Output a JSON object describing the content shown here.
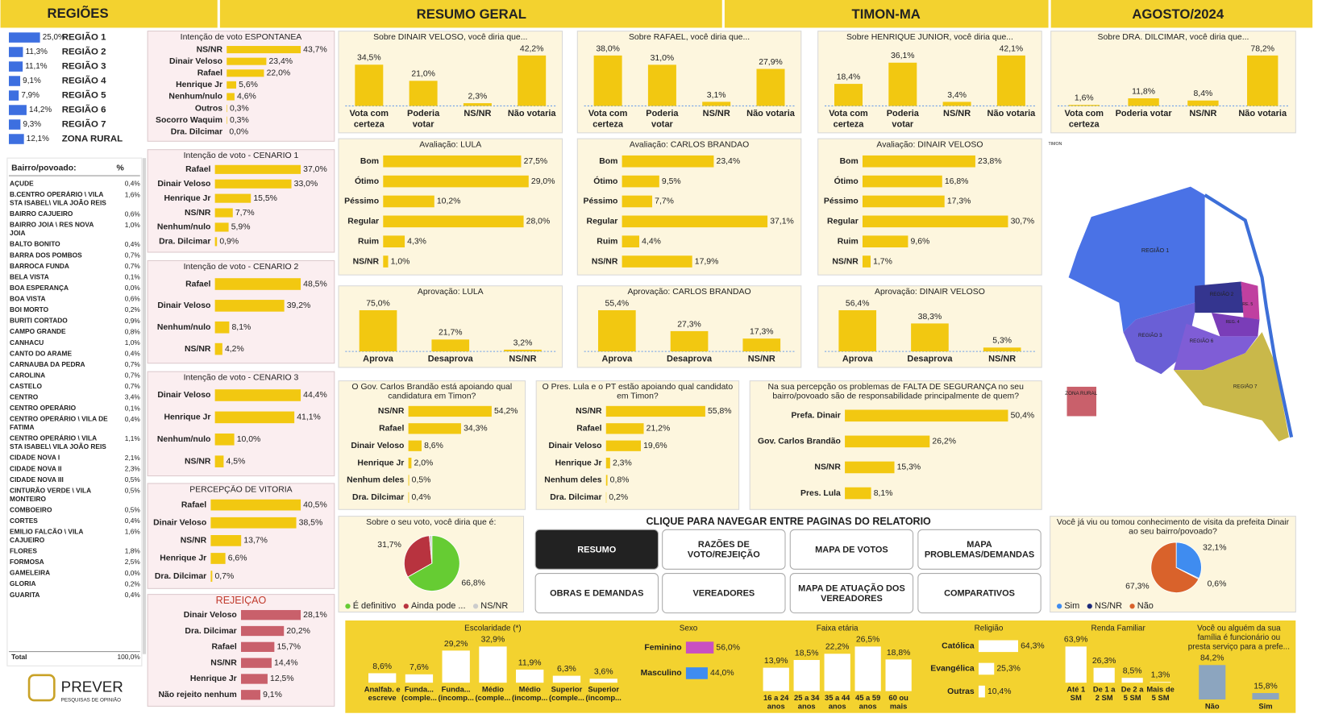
{
  "header": {
    "regions_title": "REGIÕES",
    "summary_title": "RESUMO GERAL",
    "city": "TIMON-MA",
    "period": "AGOSTO/2024"
  },
  "chart_data": [
    {
      "type": "bar",
      "orientation": "horizontal",
      "categories": [
        "REGIÃO 1",
        "REGIÃO 2",
        "REGIÃO 3",
        "REGIÃO 4",
        "REGIÃO 5",
        "REGIÃO 6",
        "REGIÃO 7",
        "ZONA RURAL"
      ],
      "values": [
        25.0,
        11.3,
        11.1,
        9.1,
        7.9,
        14.2,
        9.3,
        12.1
      ],
      "value_labels": [
        "25,0%",
        "11,3%",
        "11,1%",
        "9,1%",
        "7,9%",
        "14,2%",
        "9,3%",
        "12,1%"
      ],
      "color": "#3d6fe0"
    },
    {
      "type": "bar",
      "orientation": "horizontal",
      "title": "Intenção de voto ESPONTANEA",
      "categories": [
        "NS/NR",
        "Dinair Veloso",
        "Rafael",
        "Henrique Jr",
        "Nenhum/nulo",
        "Outros",
        "Socorro Waquim",
        "Dra. Dilcimar"
      ],
      "values": [
        43.7,
        23.4,
        22.0,
        5.6,
        4.6,
        0.3,
        0.3,
        0.0
      ],
      "value_labels": [
        "43,7%",
        "23,4%",
        "22,0%",
        "5,6%",
        "4,6%",
        "0,3%",
        "0,3%",
        "0,0%"
      ],
      "color": "#f2c811"
    },
    {
      "type": "bar",
      "orientation": "horizontal",
      "title": "Intenção de voto - CENARIO 1",
      "categories": [
        "Rafael",
        "Dinair Veloso",
        "Henrique Jr",
        "NS/NR",
        "Nenhum/nulo",
        "Dra. Dilcimar"
      ],
      "values": [
        37.0,
        33.0,
        15.5,
        7.7,
        5.9,
        0.9
      ],
      "value_labels": [
        "37,0%",
        "33,0%",
        "15,5%",
        "7,7%",
        "5,9%",
        "0,9%"
      ],
      "color": "#f2c811"
    },
    {
      "type": "bar",
      "orientation": "horizontal",
      "title": "Intenção de voto - CENARIO 2",
      "categories": [
        "Rafael",
        "Dinair Veloso",
        "Nenhum/nulo",
        "NS/NR"
      ],
      "values": [
        48.5,
        39.2,
        8.1,
        4.2
      ],
      "value_labels": [
        "48,5%",
        "39,2%",
        "8,1%",
        "4,2%"
      ],
      "color": "#f2c811"
    },
    {
      "type": "bar",
      "orientation": "horizontal",
      "title": "Intenção de voto - CENARIO 3",
      "categories": [
        "Dinair Veloso",
        "Henrique Jr",
        "Nenhum/nulo",
        "NS/NR"
      ],
      "values": [
        44.4,
        41.1,
        10.0,
        4.5
      ],
      "value_labels": [
        "44,4%",
        "41,1%",
        "10,0%",
        "4,5%"
      ],
      "color": "#f2c811"
    },
    {
      "type": "bar",
      "orientation": "horizontal",
      "title": "PERCEPÇÃO DE VITORIA",
      "categories": [
        "Rafael",
        "Dinair Veloso",
        "NS/NR",
        "Henrique Jr",
        "Dra. Dilcimar"
      ],
      "values": [
        40.5,
        38.5,
        13.7,
        6.6,
        0.7
      ],
      "value_labels": [
        "40,5%",
        "38,5%",
        "13,7%",
        "6,6%",
        "0,7%"
      ],
      "color": "#f2c811"
    },
    {
      "type": "bar",
      "orientation": "horizontal",
      "title": "REJEIÇÃO",
      "title_color": "#c0392b",
      "categories": [
        "Dinair Veloso",
        "Dra. Dilcimar",
        "Rafael",
        "NS/NR",
        "Henrique Jr",
        "Não rejeito nenhum"
      ],
      "values": [
        28.1,
        20.2,
        15.7,
        14.4,
        12.5,
        9.1
      ],
      "value_labels": [
        "28,1%",
        "20,2%",
        "15,7%",
        "14,4%",
        "12,5%",
        "9,1%"
      ],
      "color": "#c9606b"
    },
    {
      "type": "bar",
      "orientation": "vertical",
      "title": "Sobre DINAIR VELOSO, você diria que...",
      "categories": [
        "Vota com certeza",
        "Poderia votar",
        "NS/NR",
        "Não votaria"
      ],
      "values": [
        34.5,
        21.0,
        2.3,
        42.2
      ],
      "value_labels": [
        "34,5%",
        "21,0%",
        "2,3%",
        "42,2%"
      ],
      "color": "#f2c811"
    },
    {
      "type": "bar",
      "orientation": "vertical",
      "title": "Sobre RAFAEL, você diria que...",
      "categories": [
        "Vota com certeza",
        "Poderia votar",
        "NS/NR",
        "Não votaria"
      ],
      "values": [
        38.0,
        31.0,
        3.1,
        27.9
      ],
      "value_labels": [
        "38,0%",
        "31,0%",
        "3,1%",
        "27,9%"
      ],
      "color": "#f2c811"
    },
    {
      "type": "bar",
      "orientation": "vertical",
      "title": "Sobre HENRIQUE JUNIOR, você diria que...",
      "categories": [
        "Vota com certeza",
        "Poderia votar",
        "NS/NR",
        "Não votaria"
      ],
      "values": [
        18.4,
        36.1,
        3.4,
        42.1
      ],
      "value_labels": [
        "18,4%",
        "36,1%",
        "3,4%",
        "42,1%"
      ],
      "color": "#f2c811"
    },
    {
      "type": "bar",
      "orientation": "vertical",
      "title": "Sobre DRA. DILCIMAR, você diria que...",
      "categories": [
        "Vota com certeza",
        "Poderia votar",
        "NS/NR",
        "Não votaria"
      ],
      "values": [
        1.6,
        11.8,
        8.4,
        78.2
      ],
      "value_labels": [
        "1,6%",
        "11,8%",
        "8,4%",
        "78,2%"
      ],
      "color": "#f2c811"
    },
    {
      "type": "bar",
      "orientation": "horizontal",
      "title": "Avaliação: LULA",
      "categories": [
        "Bom",
        "Ótimo",
        "Péssimo",
        "Regular",
        "Ruim",
        "NS/NR"
      ],
      "values": [
        27.5,
        29.0,
        10.2,
        28.0,
        4.3,
        1.0
      ],
      "value_labels": [
        "27,5%",
        "29,0%",
        "10,2%",
        "28,0%",
        "4,3%",
        "1,0%"
      ],
      "color": "#f2c811"
    },
    {
      "type": "bar",
      "orientation": "horizontal",
      "title": "Avaliação: CARLOS BRANDAO",
      "categories": [
        "Bom",
        "Ótimo",
        "Péssimo",
        "Regular",
        "Ruim",
        "NS/NR"
      ],
      "values": [
        23.4,
        9.5,
        7.7,
        37.1,
        4.4,
        17.9
      ],
      "value_labels": [
        "23,4%",
        "9,5%",
        "7,7%",
        "37,1%",
        "4,4%",
        "17,9%"
      ],
      "color": "#f2c811"
    },
    {
      "type": "bar",
      "orientation": "horizontal",
      "title": "Avaliação: DINAIR VELOSO",
      "categories": [
        "Bom",
        "Ótimo",
        "Péssimo",
        "Regular",
        "Ruim",
        "NS/NR"
      ],
      "values": [
        23.8,
        16.8,
        17.3,
        30.7,
        9.6,
        1.7
      ],
      "value_labels": [
        "23,8%",
        "16,8%",
        "17,3%",
        "30,7%",
        "9,6%",
        "1,7%"
      ],
      "color": "#f2c811"
    },
    {
      "type": "bar",
      "orientation": "vertical",
      "title": "Aprovação: LULA",
      "categories": [
        "Aprova",
        "Desaprova",
        "NS/NR"
      ],
      "values": [
        75.0,
        21.7,
        3.2
      ],
      "value_labels": [
        "75,0%",
        "21,7%",
        "3,2%"
      ],
      "color": "#f2c811"
    },
    {
      "type": "bar",
      "orientation": "vertical",
      "title": "Aprovação: CARLOS BRANDAO",
      "categories": [
        "Aprova",
        "Desaprova",
        "NS/NR"
      ],
      "values": [
        55.4,
        27.3,
        17.3
      ],
      "value_labels": [
        "55,4%",
        "27,3%",
        "17,3%"
      ],
      "color": "#f2c811"
    },
    {
      "type": "bar",
      "orientation": "vertical",
      "title": "Aprovação: DINAIR VELOSO",
      "categories": [
        "Aprova",
        "Desaprova",
        "NS/NR"
      ],
      "values": [
        56.4,
        38.3,
        5.3
      ],
      "value_labels": [
        "56,4%",
        "38,3%",
        "5,3%"
      ],
      "color": "#f2c811"
    },
    {
      "type": "bar",
      "orientation": "horizontal",
      "title": "O Gov. Carlos Brandão está apoiando qual candidatura em Timon?",
      "categories": [
        "NS/NR",
        "Rafael",
        "Dinair Veloso",
        "Henrique Jr",
        "Nenhum deles",
        "Dra. Dilcimar"
      ],
      "values": [
        54.2,
        34.3,
        8.6,
        2.0,
        0.5,
        0.4
      ],
      "value_labels": [
        "54,2%",
        "34,3%",
        "8,6%",
        "2,0%",
        "0,5%",
        "0,4%"
      ],
      "color": "#f2c811"
    },
    {
      "type": "bar",
      "orientation": "horizontal",
      "title": "O Pres. Lula e o PT estão apoiando qual candidato em Timon?",
      "categories": [
        "NS/NR",
        "Rafael",
        "Dinair Veloso",
        "Henrique Jr",
        "Nenhum deles",
        "Dra. Dilcimar"
      ],
      "values": [
        55.8,
        21.2,
        19.6,
        2.3,
        0.8,
        0.2
      ],
      "value_labels": [
        "55,8%",
        "21,2%",
        "19,6%",
        "2,3%",
        "0,8%",
        "0,2%"
      ],
      "color": "#f2c811"
    },
    {
      "type": "bar",
      "orientation": "horizontal",
      "title": "Na sua percepção os problemas de FALTA DE SEGURANÇA no seu bairro/povoado são de responsabilidade principalmente de quem?",
      "categories": [
        "Prefa. Dinair",
        "Gov. Carlos Brandão",
        "NS/NR",
        "Pres. Lula"
      ],
      "values": [
        50.4,
        26.2,
        15.3,
        8.1
      ],
      "value_labels": [
        "50,4%",
        "26,2%",
        "15,3%",
        "8,1%"
      ],
      "color": "#f2c811"
    },
    {
      "type": "pie",
      "title": "Sobre o seu voto, você diria que é:",
      "categories": [
        "É definitivo",
        "Ainda pode ...",
        "NS/NR"
      ],
      "values": [
        66.8,
        31.7,
        1.5
      ],
      "value_labels": [
        "66,8%",
        "31,7%",
        null
      ],
      "colors": [
        "#66cc33",
        "#b8333f",
        "#cccccc"
      ]
    },
    {
      "type": "pie",
      "title": "Você já viu ou tomou conhecimento de visita da prefeita Dinair ao seu bairro/povoado?",
      "categories": [
        "Sim",
        "NS/NR",
        "Não"
      ],
      "values": [
        32.1,
        0.6,
        67.3
      ],
      "value_labels": [
        "32,1%",
        "0,6%",
        "67,3%"
      ],
      "colors": [
        "#3f8cf0",
        "#1d2a7a",
        "#d9622b"
      ]
    },
    {
      "type": "bar",
      "orientation": "vertical",
      "title": "Escolaridade (*)",
      "categories": [
        "Analfab. e escreve",
        "Funda... (comple...",
        "Funda... (incomp...",
        "Médio (comple...",
        "Médio (incomp...",
        "Superior (comple...",
        "Superior (incomp..."
      ],
      "values": [
        8.6,
        7.6,
        29.2,
        32.9,
        11.9,
        6.3,
        3.6
      ],
      "value_labels": [
        "8,6%",
        "7,6%",
        "29,2%",
        "32,9%",
        "11,9%",
        "6,3%",
        "3,6%"
      ],
      "color": "#ffffff"
    },
    {
      "type": "bar",
      "orientation": "horizontal",
      "title": "Sexo",
      "categories": [
        "Feminino",
        "Masculino"
      ],
      "values": [
        56.0,
        44.0
      ],
      "value_labels": [
        "56,0%",
        "44,0%"
      ],
      "colors": [
        "#c94fc1",
        "#3f8cf0"
      ]
    },
    {
      "type": "bar",
      "orientation": "vertical",
      "title": "Faixa etária",
      "categories": [
        "16 a 24 anos",
        "25 a 34 anos",
        "35 a 44 anos",
        "45 a 59 anos",
        "60 ou mais"
      ],
      "values": [
        13.9,
        18.5,
        22.2,
        26.5,
        18.8
      ],
      "value_labels": [
        "13,9%",
        "18,5%",
        "22,2%",
        "26,5%",
        "18,8%"
      ],
      "color": "#ffffff"
    },
    {
      "type": "bar",
      "orientation": "horizontal",
      "title": "Religião",
      "categories": [
        "Católica",
        "Evangélica",
        "Outras"
      ],
      "values": [
        64.3,
        25.3,
        10.4
      ],
      "value_labels": [
        "64,3%",
        "25,3%",
        "10,4%"
      ],
      "color": "#ffffff"
    },
    {
      "type": "bar",
      "orientation": "vertical",
      "title": "Renda Familiar",
      "categories": [
        "Até 1 SM",
        "De 1 a 2 SM",
        "De 2 a 5 SM",
        "Mais de 5 SM"
      ],
      "values": [
        63.9,
        26.3,
        8.5,
        1.3
      ],
      "value_labels": [
        "63,9%",
        "26,3%",
        "8,5%",
        "1,3%"
      ],
      "color": "#ffffff"
    },
    {
      "type": "bar",
      "orientation": "vertical",
      "title": "Você ou alguém da sua família é funcionário ou presta serviço para a prefe...",
      "categories": [
        "Não",
        "Sim"
      ],
      "values": [
        84.2,
        15.8
      ],
      "value_labels": [
        "84,2%",
        "15,8%"
      ],
      "color": "#8ca5bf"
    }
  ],
  "neighborhoods": {
    "header": [
      "Bairro/povoado:",
      "%"
    ],
    "rows": [
      [
        "AÇUDE",
        "0,4%"
      ],
      [
        "B.CENTRO OPERÁRIO \\ VILA STA ISABEL\\ VILA JOÃO REIS",
        "1,6%"
      ],
      [
        "BAIRRO CAJUEIRO",
        "0,6%"
      ],
      [
        "BAIRRO JOIA \\ RES NOVA JOIA",
        "1,0%"
      ],
      [
        "BALTO BONITO",
        "0,4%"
      ],
      [
        "BARRA DOS POMBOS",
        "0,7%"
      ],
      [
        "BARROCA FUNDA",
        "0,7%"
      ],
      [
        "BELA VISTA",
        "0,1%"
      ],
      [
        "BOA ESPERANÇA",
        "0,0%"
      ],
      [
        "BOA VISTA",
        "0,6%"
      ],
      [
        "BOI MORTO",
        "0,2%"
      ],
      [
        "BURITI CORTADO",
        "0,9%"
      ],
      [
        "CAMPO GRANDE",
        "0,8%"
      ],
      [
        "CANHACU",
        "1,0%"
      ],
      [
        "CANTO DO ARAME",
        "0,4%"
      ],
      [
        "CARNAUBA DA PEDRA",
        "0,7%"
      ],
      [
        "CAROLINA",
        "0,7%"
      ],
      [
        "CASTELO",
        "0,7%"
      ],
      [
        "CENTRO",
        "3,4%"
      ],
      [
        "CENTRO OPERÁRIO",
        "0,1%"
      ],
      [
        "CENTRO OPERÁRIO \\ VILA DE FATIMA",
        "0,4%"
      ],
      [
        "CENTRO OPERÁRIO \\ VILA STA ISABEL\\ VILA JOÃO REIS",
        "1,1%"
      ],
      [
        "CIDADE NOVA I",
        "2,1%"
      ],
      [
        "CIDADE NOVA II",
        "2,3%"
      ],
      [
        "CIDADE NOVA III",
        "0,5%"
      ],
      [
        "CINTURÃO VERDE \\ VILA MONTEIRO",
        "0,5%"
      ],
      [
        "COMBOEIRO",
        "0,5%"
      ],
      [
        "CORTES",
        "0,4%"
      ],
      [
        "EMILIO FALCÃO \\ VILA CAJUEIRO",
        "1,6%"
      ],
      [
        "FLORES",
        "1,8%"
      ],
      [
        "FORMOSA",
        "2,5%"
      ],
      [
        "GAMELEIRA",
        "0,0%"
      ],
      [
        "GLORIA",
        "0,2%"
      ],
      [
        "GUARITA",
        "0,4%"
      ]
    ],
    "total": [
      "Total",
      "100,0%"
    ]
  },
  "navigation": {
    "title": "CLIQUE PARA NAVEGAR ENTRE PAGINAS DO RELATORIO",
    "buttons": [
      "RESUMO",
      "RAZÕES DE VOTO/REJEIÇÃO",
      "MAPA DE VOTOS",
      "MAPA PROBLEMAS/DEMANDAS",
      "OBRAS E DEMANDAS",
      "VEREADORES",
      "MAPA DE ATUAÇÃO DOS VEREADORES",
      "COMPARATIVOS"
    ]
  },
  "map": {
    "title": "TIMON",
    "labels": [
      "REGIÃO 1",
      "REGIÃO 2",
      "RE. 5",
      "REG. 4",
      "REGIÃO 3",
      "REGIÃO 6",
      "REGIÃO 7",
      "ZONA RURAL"
    ]
  },
  "logo": {
    "name": "PREVER",
    "tagline": "PESQUISAS DE OPINIÃO"
  }
}
